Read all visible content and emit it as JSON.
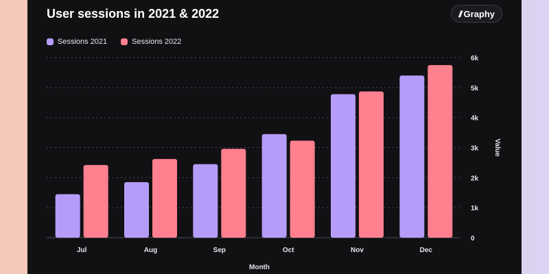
{
  "header": {
    "title": "User sessions in 2021 & 2022",
    "brand_label": "Graphy",
    "brand_icon": "slash-mark-icon"
  },
  "chart_data": {
    "type": "bar",
    "title": "User sessions in 2021 & 2022",
    "xlabel": "Month",
    "ylabel": "Value",
    "categories": [
      "Jul",
      "Aug",
      "Sep",
      "Oct",
      "Nov",
      "Dec"
    ],
    "series": [
      {
        "name": "Sessions 2021",
        "color": "#b69cf9",
        "values": [
          1450,
          1850,
          2450,
          3450,
          4780,
          5400
        ]
      },
      {
        "name": "Sessions 2022",
        "color": "#ff808e",
        "values": [
          2420,
          2620,
          2960,
          3230,
          4870,
          5750
        ]
      }
    ],
    "ylim": [
      0,
      6000
    ],
    "yticks": [
      0,
      1000,
      2000,
      3000,
      4000,
      5000,
      6000
    ],
    "ytick_labels": [
      "0",
      "1k",
      "2k",
      "3k",
      "4k",
      "5k",
      "6k"
    ],
    "grid": true,
    "legend_position": "top-left"
  }
}
